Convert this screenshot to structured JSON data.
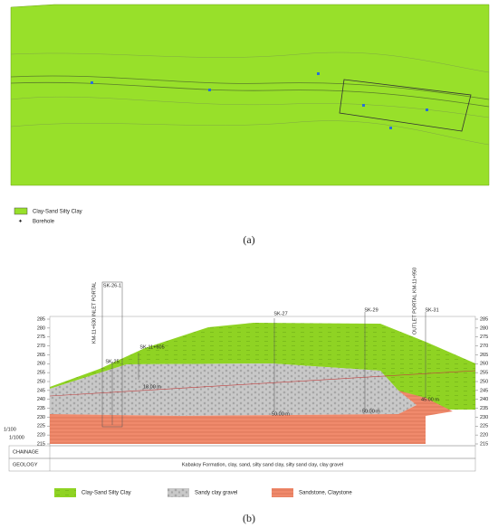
{
  "map": {
    "legend": [
      "Clay-Sand Silty Clay",
      "Borehole"
    ],
    "caption": "(a)"
  },
  "section": {
    "boreholes": [
      "SK-26-1",
      "SK-25",
      "SK-11+605",
      "SK-27",
      "SK-29",
      "SK-31"
    ],
    "portals": [
      "KM-11+630 INLET PORTAL",
      "OUTLET PORTAL KM-11+950"
    ],
    "depths": [
      "18.00 m",
      "50.00 m",
      "50.00 m",
      "45.00 m"
    ],
    "elevations": [
      285,
      280,
      275,
      270,
      265,
      260,
      255,
      250,
      245,
      240,
      235,
      230,
      225,
      220,
      215
    ],
    "scales": [
      "1/100",
      "1/1000"
    ],
    "rows": [
      "CHAINAGE",
      "GEOLOGY"
    ],
    "geology": "Kabakoy Formation, clay, sand, silty sand clay, silty sand clay, clay gravel",
    "legend": [
      "Clay-Sand Silty Clay",
      "Sandy clay gravel",
      "Sandstone, Claystone"
    ],
    "caption": "(b)"
  }
}
